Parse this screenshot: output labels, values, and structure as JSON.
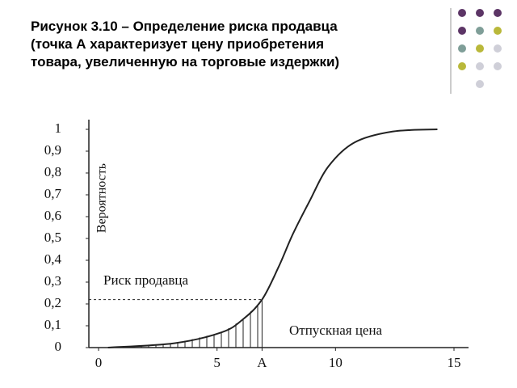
{
  "chart_data": {
    "type": "line",
    "title_lines": [
      "Рисунок 3.10 – Определение риска продавца",
      "(точка А характеризует цену приобретения",
      "товара, увеличенную на торговые издержки)"
    ],
    "y_label": "Вероятность",
    "annotations": [
      "Риск продавца",
      "Отпускная цена"
    ],
    "x": [
      0.4,
      3.2,
      5.2,
      6.1,
      6.9,
      7.6,
      8.2,
      8.9,
      9.7,
      10.8,
      12.4,
      14.3
    ],
    "series": [
      {
        "color": "#222222",
        "values": [
          0,
          0.02,
          0.07,
          0.13,
          0.22,
          0.37,
          0.52,
          0.67,
          0.83,
          0.94,
          0.99,
          1.0
        ]
      }
    ],
    "xlim": [
      0,
      15
    ],
    "xticks": [
      0,
      5,
      {
        "value": 6.9,
        "label": "A"
      },
      10,
      15
    ],
    "ylim": [
      0,
      1
    ],
    "yticks": [
      0,
      {
        "value": 0.1,
        "label": "0,1"
      },
      {
        "value": 0.2,
        "label": "0,2"
      },
      {
        "value": 0.3,
        "label": "0,3"
      },
      {
        "value": 0.4,
        "label": "0,4"
      },
      {
        "value": 0.5,
        "label": "0,5"
      },
      {
        "value": 0.6,
        "label": "0,6"
      },
      {
        "value": 0.7,
        "label": "0,7"
      },
      {
        "value": 0.8,
        "label": "0,8"
      },
      {
        "value": 0.9,
        "label": "0,9"
      },
      1
    ]
  }
}
